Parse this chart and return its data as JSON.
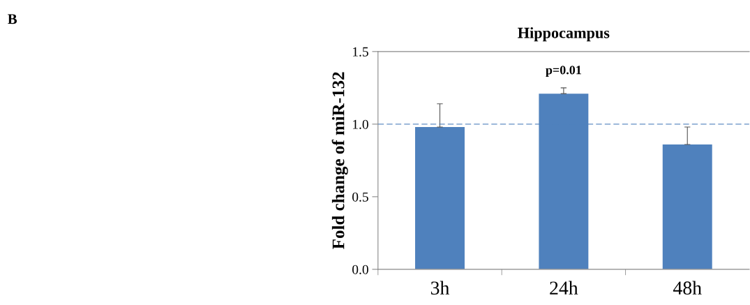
{
  "chart_data": {
    "type": "bar",
    "title": "Hippocampus",
    "ylabel": "Fold change of miR-132",
    "categories": [
      "3h",
      "24h",
      "48h"
    ],
    "values": [
      0.98,
      1.21,
      0.86
    ],
    "errors": [
      [
        0.98,
        1.14
      ],
      [
        1.21,
        1.25
      ],
      [
        0.86,
        0.98
      ]
    ],
    "color": "#4f81bd",
    "ylim": [
      0,
      1.5
    ],
    "yticks": [
      {
        "value": 0,
        "label": "0.0"
      },
      {
        "value": 0.5,
        "label": "0.5"
      },
      {
        "value": 1,
        "label": "1.0"
      },
      {
        "value": 1.5,
        "label": "1.5"
      }
    ],
    "ref_lines": [
      {
        "axis": "y",
        "value": 1,
        "color": "#4f81bd",
        "line_style": "dashed"
      }
    ],
    "annotations": [
      "B",
      "p=0.01"
    ],
    "grid": false,
    "legend": false
  }
}
